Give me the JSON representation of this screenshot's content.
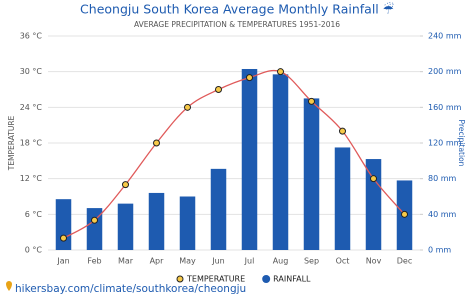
{
  "chart_data": {
    "type": "bar",
    "title": "Cheongju South Korea Average Monthly Rainfall ☔",
    "subtitle": "AVERAGE PRECIPITATION & TEMPERATURES 1951-2016",
    "y_label": "TEMPERATURE",
    "y2_label": "Precipitation",
    "footer": "hikersbay.com/climate/southkorea/cheongju",
    "categories": [
      "Jan",
      "Feb",
      "Mar",
      "Apr",
      "May",
      "Jun",
      "Jul",
      "Aug",
      "Sep",
      "Oct",
      "Nov",
      "Dec"
    ],
    "series": [
      {
        "name": "TEMPERATURE",
        "type": "line",
        "color": "#e05a5a",
        "marker_color": "#f7c948",
        "values": [
          2,
          5,
          11,
          18,
          24,
          27,
          29,
          30,
          25,
          20,
          12,
          6
        ]
      },
      {
        "name": "RAINFALL",
        "type": "bar",
        "axis": "y2",
        "color": "#1e5bb0",
        "values": [
          57,
          47,
          52,
          64,
          60,
          91,
          203,
          197,
          170,
          115,
          102,
          78
        ]
      }
    ],
    "ylim": [
      0,
      36
    ],
    "yticks": [
      {
        "value": 0,
        "label": "0 °C"
      },
      {
        "value": 6,
        "label": "6 °C"
      },
      {
        "value": 12,
        "label": "12 °C"
      },
      {
        "value": 18,
        "label": "18 °C"
      },
      {
        "value": 24,
        "label": "24 °C"
      },
      {
        "value": 30,
        "label": "30 °C"
      },
      {
        "value": 36,
        "label": "36 °C"
      }
    ],
    "y2lim": [
      0,
      240
    ],
    "y2ticks": [
      {
        "value": 0,
        "label": "0 mm"
      },
      {
        "value": 40,
        "label": "40 mm"
      },
      {
        "value": 80,
        "label": "80 mm"
      },
      {
        "value": 120,
        "label": "120 mm"
      },
      {
        "value": 160,
        "label": "160 mm"
      },
      {
        "value": 200,
        "label": "200 mm"
      },
      {
        "value": 240,
        "label": "240 mm"
      }
    ],
    "grid": true
  }
}
